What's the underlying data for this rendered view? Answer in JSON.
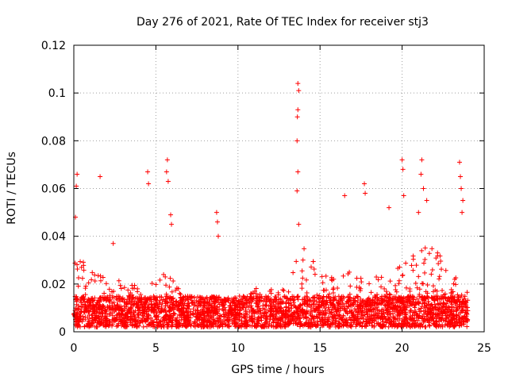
{
  "chart_data": {
    "type": "scatter",
    "title": "Day 276 of 2021, Rate Of TEC Index for receiver stj3",
    "xlabel": "GPS time / hours",
    "ylabel": "ROTI / TECUs",
    "xlim": [
      0,
      25
    ],
    "ylim": [
      0,
      0.12
    ],
    "x_ticks": [
      0,
      5,
      10,
      15,
      20,
      25
    ],
    "x_tick_labels": [
      "0",
      "5",
      "10",
      "15",
      "20",
      "25"
    ],
    "y_ticks": [
      0,
      0.02,
      0.04,
      0.06,
      0.08,
      0.1,
      0.12
    ],
    "y_tick_labels": [
      "0",
      "0.02",
      "0.04",
      "0.06",
      "0.08",
      "0.1",
      "0.12"
    ],
    "grid": true,
    "marker": "+",
    "series": [
      {
        "name": "ROTI",
        "color": "#ff0000",
        "x_range": [
          0,
          24
        ],
        "dense_baseline_range": [
          0.002,
          0.015
        ],
        "notable_points": [
          {
            "x": 0.2,
            "y": 0.066
          },
          {
            "x": 0.15,
            "y": 0.061
          },
          {
            "x": 0.1,
            "y": 0.048
          },
          {
            "x": 1.6,
            "y": 0.065
          },
          {
            "x": 2.4,
            "y": 0.037
          },
          {
            "x": 4.5,
            "y": 0.067
          },
          {
            "x": 4.55,
            "y": 0.062
          },
          {
            "x": 5.7,
            "y": 0.072
          },
          {
            "x": 5.65,
            "y": 0.067
          },
          {
            "x": 5.75,
            "y": 0.063
          },
          {
            "x": 5.9,
            "y": 0.049
          },
          {
            "x": 5.95,
            "y": 0.045
          },
          {
            "x": 8.7,
            "y": 0.05
          },
          {
            "x": 8.75,
            "y": 0.046
          },
          {
            "x": 8.8,
            "y": 0.04
          },
          {
            "x": 13.65,
            "y": 0.104
          },
          {
            "x": 13.7,
            "y": 0.101
          },
          {
            "x": 13.65,
            "y": 0.093
          },
          {
            "x": 13.62,
            "y": 0.09
          },
          {
            "x": 13.6,
            "y": 0.08
          },
          {
            "x": 13.65,
            "y": 0.067
          },
          {
            "x": 13.6,
            "y": 0.059
          },
          {
            "x": 13.7,
            "y": 0.045
          },
          {
            "x": 16.5,
            "y": 0.057
          },
          {
            "x": 17.7,
            "y": 0.062
          },
          {
            "x": 17.75,
            "y": 0.058
          },
          {
            "x": 19.2,
            "y": 0.052
          },
          {
            "x": 20.0,
            "y": 0.072
          },
          {
            "x": 20.05,
            "y": 0.068
          },
          {
            "x": 20.1,
            "y": 0.057
          },
          {
            "x": 21.2,
            "y": 0.072
          },
          {
            "x": 21.15,
            "y": 0.066
          },
          {
            "x": 21.3,
            "y": 0.06
          },
          {
            "x": 21.5,
            "y": 0.055
          },
          {
            "x": 21.0,
            "y": 0.05
          },
          {
            "x": 23.5,
            "y": 0.071
          },
          {
            "x": 23.55,
            "y": 0.065
          },
          {
            "x": 23.6,
            "y": 0.06
          },
          {
            "x": 23.7,
            "y": 0.055
          },
          {
            "x": 23.65,
            "y": 0.05
          }
        ]
      }
    ]
  }
}
